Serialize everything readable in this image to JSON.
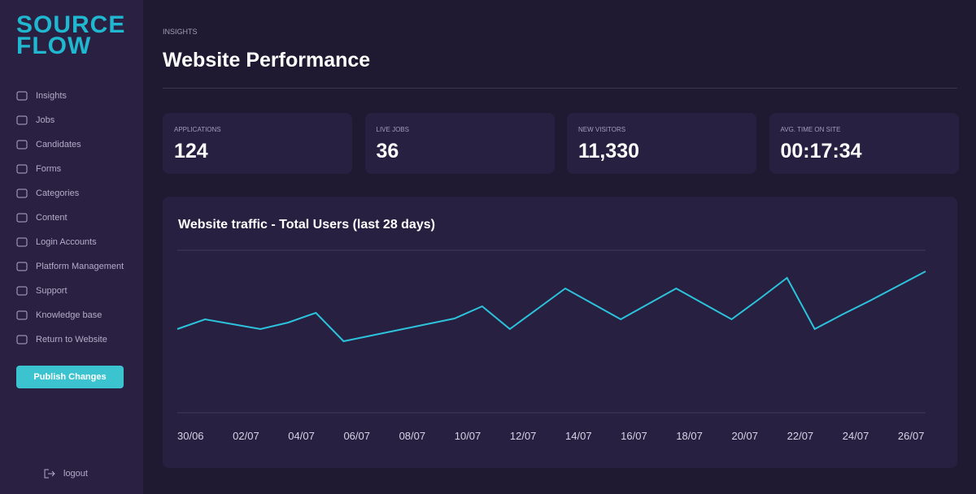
{
  "sidebar": {
    "logo": [
      "SOURCE",
      "FLOW"
    ],
    "menu": [
      "Insights",
      "Jobs",
      "Candidates",
      "Forms",
      "Categories",
      "Content",
      "Login Accounts",
      "Platform Management",
      "Support",
      "Knowledge base",
      "Return to Website"
    ],
    "button": "Publish Changes",
    "logout": "logout"
  },
  "header": {
    "section": "INSIGHTS",
    "title": "Website Performance"
  },
  "stats": [
    {
      "label": "APPLICATIONS",
      "value": "124"
    },
    {
      "label": "LIVE JOBS",
      "value": "36"
    },
    {
      "label": "NEW VISITORS",
      "value": "11,330"
    },
    {
      "label": "AVG. TIME ON SITE",
      "value": "00:17:34"
    }
  ],
  "chart_data": {
    "type": "line",
    "title": "Website traffic - Total Users (last 28 days)",
    "categories": [
      "30/06",
      null,
      "02/07",
      null,
      "04/07",
      null,
      "06/07",
      null,
      "08/07",
      null,
      "10/07",
      null,
      "12/07",
      null,
      "14/07",
      null,
      "16/07",
      null,
      "18/07",
      null,
      "20/07",
      null,
      "22/07",
      null,
      "24/07",
      null,
      "26/07",
      null
    ],
    "series": [
      {
        "name": "Total Users",
        "color": "#2cc3dc",
        "values": [
          51.5,
          57.5,
          54.5,
          51.5,
          55.5,
          61.5,
          44,
          47.5,
          51,
          54.5,
          58,
          65.5,
          51.5,
          64,
          76.5,
          67,
          57.5,
          67,
          76.5,
          67,
          57.5,
          70,
          83,
          51.5,
          60.5,
          69,
          78,
          87
        ]
      }
    ],
    "ylim": [
      0,
      100
    ]
  }
}
